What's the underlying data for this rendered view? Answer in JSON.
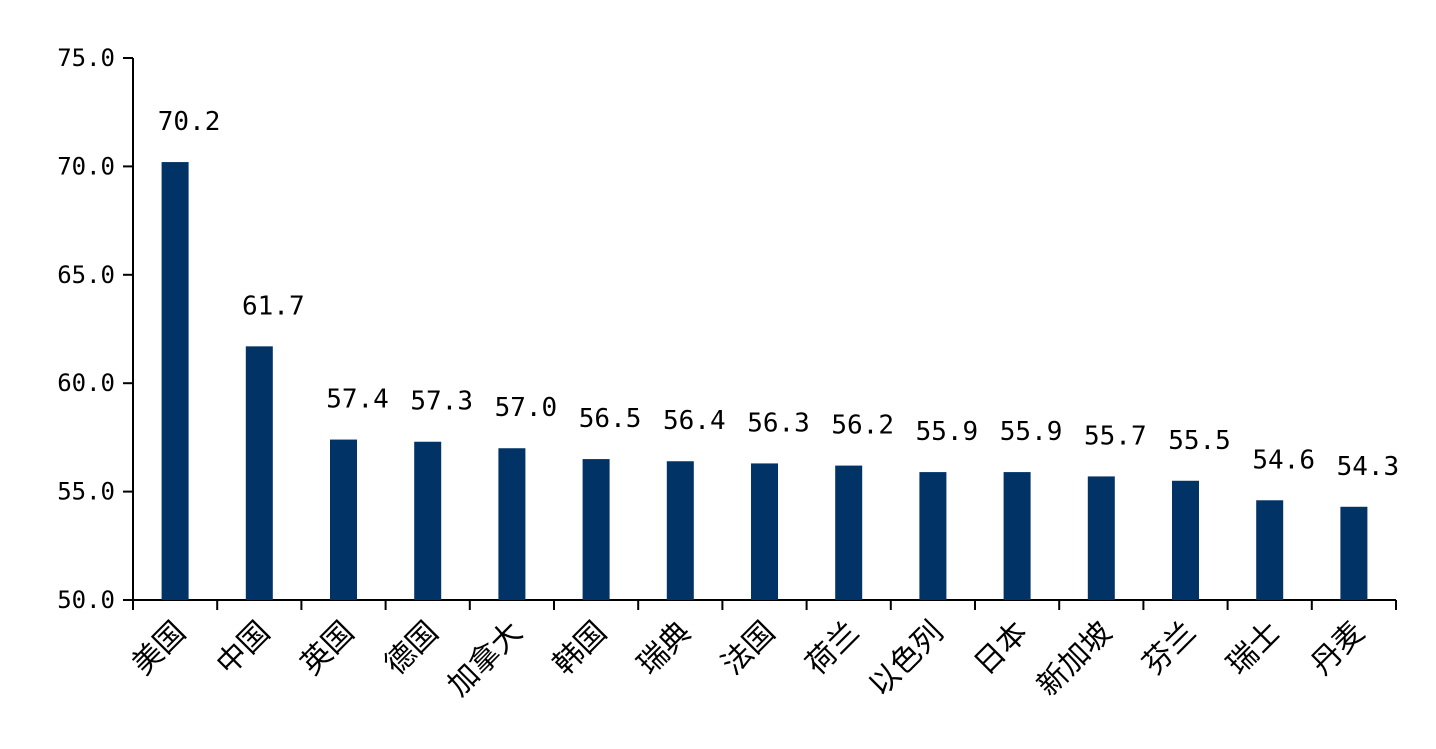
{
  "chart_data": {
    "type": "bar",
    "categories": [
      "美国",
      "中国",
      "英国",
      "德国",
      "加拿大",
      "韩国",
      "瑞典",
      "法国",
      "荷兰",
      "以色列",
      "日本",
      "新加坡",
      "芬兰",
      "瑞士",
      "丹麦"
    ],
    "values": [
      70.2,
      61.7,
      57.4,
      57.3,
      57.0,
      56.5,
      56.4,
      56.3,
      56.2,
      55.9,
      55.9,
      55.7,
      55.5,
      54.6,
      54.3
    ],
    "data_labels": [
      "70.2",
      "61.7",
      "57.4",
      "57.3",
      "57.0",
      "56.5",
      "56.4",
      "56.3",
      "56.2",
      "55.9",
      "55.9",
      "55.7",
      "55.5",
      "54.6",
      "54.3"
    ],
    "y_ticks": [
      50,
      55,
      60,
      65,
      70,
      75
    ],
    "y_tick_labels": [
      "50.0",
      "55.0",
      "60.0",
      "65.0",
      "70.0",
      "75.0"
    ],
    "ylim": [
      50,
      75
    ],
    "title": "",
    "xlabel": "",
    "ylabel": "",
    "grid": false,
    "bar_color": "#023366",
    "axis_color": "#000000"
  }
}
